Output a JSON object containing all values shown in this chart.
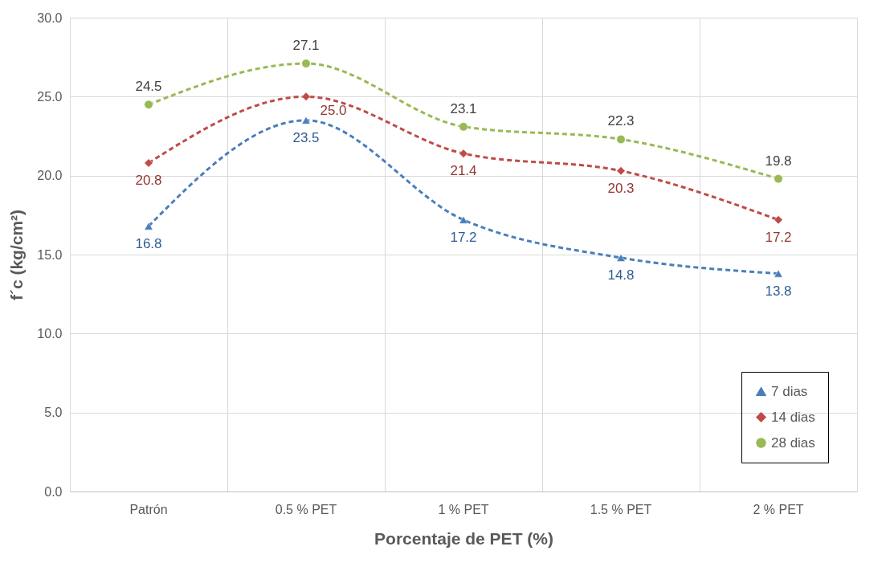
{
  "chart_data": {
    "type": "line",
    "xlabel": "Porcentaje de PET (%)",
    "ylabel": "f´c (kg/cm²)",
    "categories": [
      "Patrón",
      "0.5 % PET",
      "1 % PET",
      "1.5 % PET",
      "2 % PET"
    ],
    "series": [
      {
        "name": "7 dias",
        "color": "#4a7ebb",
        "marker": "triangle",
        "values": [
          16.8,
          23.5,
          17.2,
          14.8,
          13.8
        ],
        "value_labels": [
          "16.8",
          "23.5",
          "17.2",
          "14.8",
          "13.8"
        ]
      },
      {
        "name": "14 dias",
        "color": "#be4b48",
        "marker": "diamond",
        "values": [
          20.8,
          25,
          21.4,
          20.3,
          17.2
        ],
        "value_labels": [
          "20.8",
          "25.0",
          "21.4",
          "20.3",
          "17.2"
        ]
      },
      {
        "name": "28 dias",
        "color": "#98b954",
        "marker": "circle",
        "values": [
          24.5,
          27.1,
          23.1,
          22.3,
          19.8
        ],
        "value_labels": [
          "24.5",
          "27.1",
          "23.1",
          "22.3",
          "19.8"
        ]
      }
    ],
    "ylim": [
      0,
      30
    ],
    "yticks": [
      {
        "value": 0,
        "label": "0.0"
      },
      {
        "value": 5,
        "label": "5.0"
      },
      {
        "value": 10,
        "label": "10.0"
      },
      {
        "value": 15,
        "label": "15.0"
      },
      {
        "value": 20,
        "label": "20.0"
      },
      {
        "value": 25,
        "label": "25.0"
      },
      {
        "value": 30,
        "label": "30.0"
      }
    ],
    "grid": true,
    "legend": "bottom right",
    "line_style": "dashed"
  }
}
